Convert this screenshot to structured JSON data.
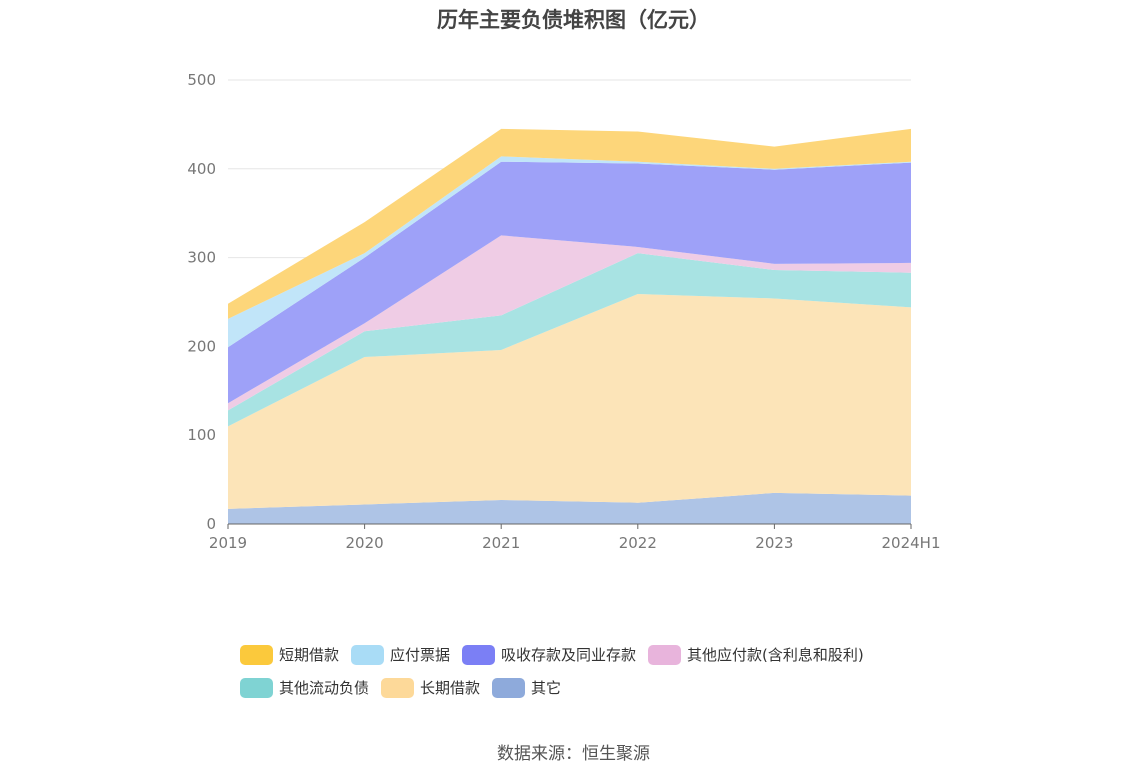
{
  "chart_data": {
    "type": "area",
    "stacked": true,
    "title": "历年主要负债堆积图（亿元）",
    "categories": [
      "2019",
      "2020",
      "2021",
      "2022",
      "2023",
      "2024H1"
    ],
    "ylim": [
      0,
      500
    ],
    "yticks": [
      0,
      100,
      200,
      300,
      400,
      500
    ],
    "grid": true,
    "legend_position": "bottom",
    "series": [
      {
        "name": "其它",
        "color": "#8eaadb",
        "fill": "#aec4e6",
        "values": [
          17,
          22,
          27,
          24,
          35,
          32
        ]
      },
      {
        "name": "长期借款",
        "color": "#fdd999",
        "fill": "#fce4b8",
        "values": [
          93,
          166,
          169,
          235,
          219,
          212
        ]
      },
      {
        "name": "其他流动负债",
        "color": "#7fd3d3",
        "fill": "#a8e3e3",
        "values": [
          18,
          29,
          39,
          46,
          32,
          39
        ]
      },
      {
        "name": "其他应付款(含利息和股利)",
        "color": "#e8b4dc",
        "fill": "#efcce5",
        "values": [
          8,
          9,
          90,
          7,
          7,
          11
        ]
      },
      {
        "name": "吸收存款及同业存款",
        "color": "#7b7ff5",
        "fill": "#9ea1f8",
        "values": [
          63,
          74,
          83,
          94,
          106,
          113
        ]
      },
      {
        "name": "应付票据",
        "color": "#a9dcf6",
        "fill": "#c1e5f9",
        "values": [
          32,
          5,
          6,
          2,
          1,
          1
        ]
      },
      {
        "name": "短期借款",
        "color": "#fbc93c",
        "fill": "#fdd67a",
        "values": [
          17,
          35,
          31,
          34,
          25,
          37
        ]
      }
    ],
    "legend_order": [
      "短期借款",
      "应付票据",
      "吸收存款及同业存款",
      "其他应付款(含利息和股利)",
      "其他流动负债",
      "长期借款",
      "其它"
    ]
  },
  "source_text": "数据来源：恒生聚源"
}
